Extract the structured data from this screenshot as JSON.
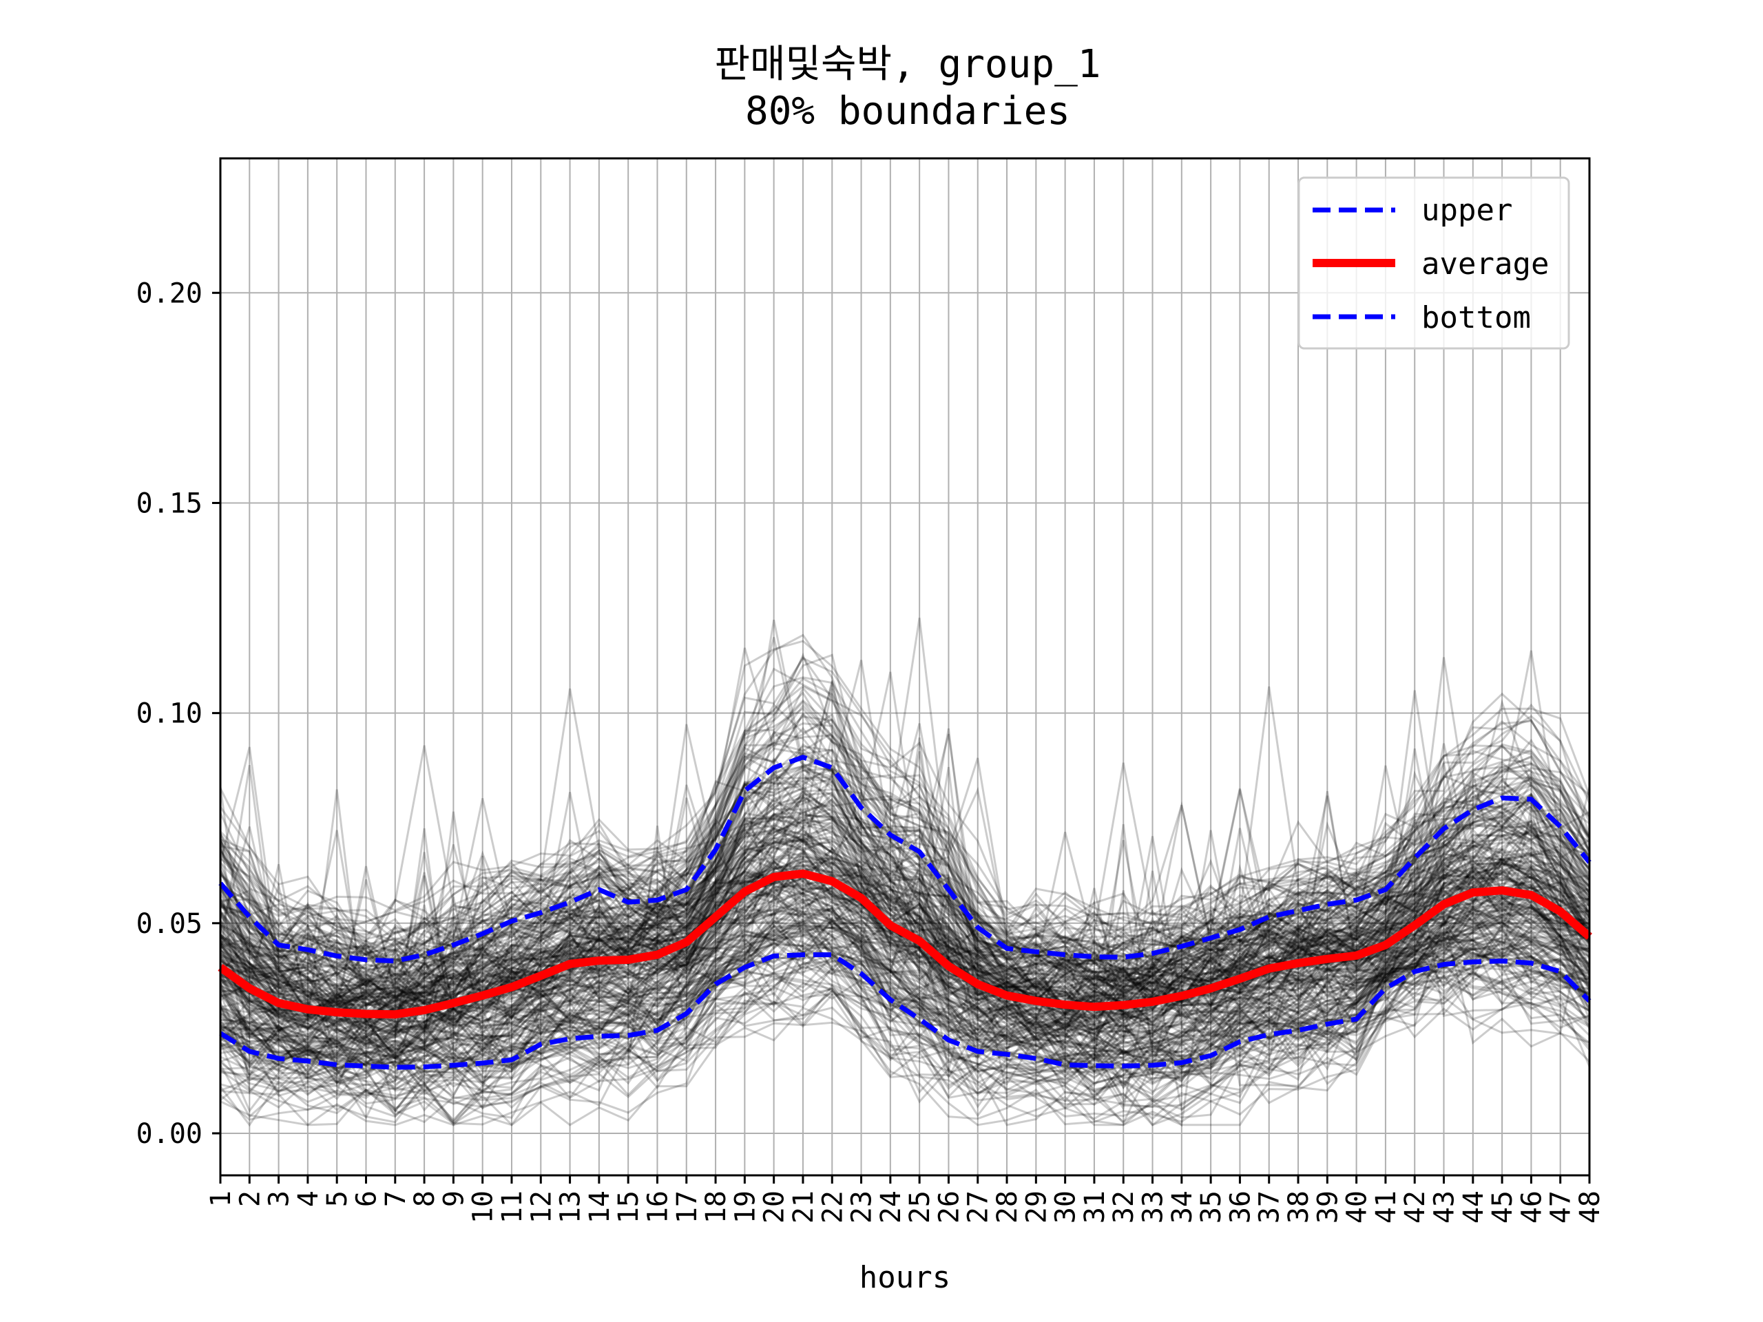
{
  "chart_data": {
    "type": "line",
    "title": "판매및숙박, group_1",
    "subtitle": "80% boundaries",
    "xlabel": "hours",
    "ylabel": "",
    "x": [
      1,
      2,
      3,
      4,
      5,
      6,
      7,
      8,
      9,
      10,
      11,
      12,
      13,
      14,
      15,
      16,
      17,
      18,
      19,
      20,
      21,
      22,
      23,
      24,
      25,
      26,
      27,
      28,
      29,
      30,
      31,
      32,
      33,
      34,
      35,
      36,
      37,
      38,
      39,
      40,
      41,
      42,
      43,
      44,
      45,
      46,
      47,
      48
    ],
    "x_tick_labels": [
      "1",
      "2",
      "3",
      "4",
      "5",
      "6",
      "7",
      "8",
      "9",
      "10",
      "11",
      "12",
      "13",
      "14",
      "15",
      "16",
      "17",
      "18",
      "19",
      "20",
      "21",
      "22",
      "23",
      "24",
      "25",
      "26",
      "27",
      "28",
      "29",
      "30",
      "31",
      "32",
      "33",
      "34",
      "35",
      "36",
      "37",
      "38",
      "39",
      "40",
      "41",
      "42",
      "43",
      "44",
      "45",
      "46",
      "47",
      "48"
    ],
    "y_ticks": [
      0.0,
      0.05,
      0.1,
      0.15,
      0.2
    ],
    "y_tick_labels": [
      "0.00",
      "0.05",
      "0.10",
      "0.15",
      "0.20"
    ],
    "ylim": [
      -0.01,
      0.232
    ],
    "xlim": [
      1,
      48
    ],
    "grid": true,
    "legend_position": "top-right",
    "series": [
      {
        "name": "upper",
        "color": "#0000ff",
        "style": "dashed",
        "values": [
          0.0595,
          0.0515,
          0.0448,
          0.0437,
          0.0422,
          0.0413,
          0.041,
          0.0425,
          0.0448,
          0.0475,
          0.0505,
          0.0525,
          0.055,
          0.058,
          0.055,
          0.0555,
          0.058,
          0.0675,
          0.0815,
          0.087,
          0.0895,
          0.087,
          0.0775,
          0.071,
          0.067,
          0.058,
          0.049,
          0.044,
          0.0432,
          0.0425,
          0.042,
          0.0419,
          0.0428,
          0.0445,
          0.0465,
          0.0485,
          0.0515,
          0.053,
          0.0545,
          0.0555,
          0.058,
          0.0655,
          0.0725,
          0.077,
          0.0798,
          0.0795,
          0.073,
          0.0645
        ]
      },
      {
        "name": "average",
        "color": "#ff0000",
        "style": "solid",
        "values": [
          0.0395,
          0.0345,
          0.031,
          0.0295,
          0.0288,
          0.0284,
          0.0283,
          0.0293,
          0.031,
          0.0328,
          0.0348,
          0.0375,
          0.0403,
          0.0411,
          0.0413,
          0.0425,
          0.0455,
          0.0515,
          0.0575,
          0.061,
          0.0618,
          0.06,
          0.056,
          0.0495,
          0.0458,
          0.0398,
          0.0355,
          0.0328,
          0.0315,
          0.0306,
          0.0301,
          0.0305,
          0.0313,
          0.0327,
          0.0345,
          0.0368,
          0.0392,
          0.0405,
          0.0415,
          0.0423,
          0.0448,
          0.0495,
          0.0545,
          0.0573,
          0.0578,
          0.0567,
          0.0528,
          0.0468
        ]
      },
      {
        "name": "bottom",
        "color": "#0000ff",
        "style": "dashed",
        "values": [
          0.0238,
          0.0195,
          0.0178,
          0.0172,
          0.0163,
          0.016,
          0.0157,
          0.0158,
          0.0162,
          0.0167,
          0.0175,
          0.0212,
          0.0225,
          0.0231,
          0.0233,
          0.0245,
          0.0285,
          0.0355,
          0.0395,
          0.0422,
          0.0425,
          0.0425,
          0.038,
          0.0318,
          0.0272,
          0.0222,
          0.0195,
          0.0188,
          0.0178,
          0.0163,
          0.0161,
          0.016,
          0.0162,
          0.0168,
          0.0185,
          0.0218,
          0.0235,
          0.0245,
          0.026,
          0.0272,
          0.0345,
          0.0385,
          0.0402,
          0.0408,
          0.041,
          0.0405,
          0.0385,
          0.0315
        ]
      }
    ]
  }
}
